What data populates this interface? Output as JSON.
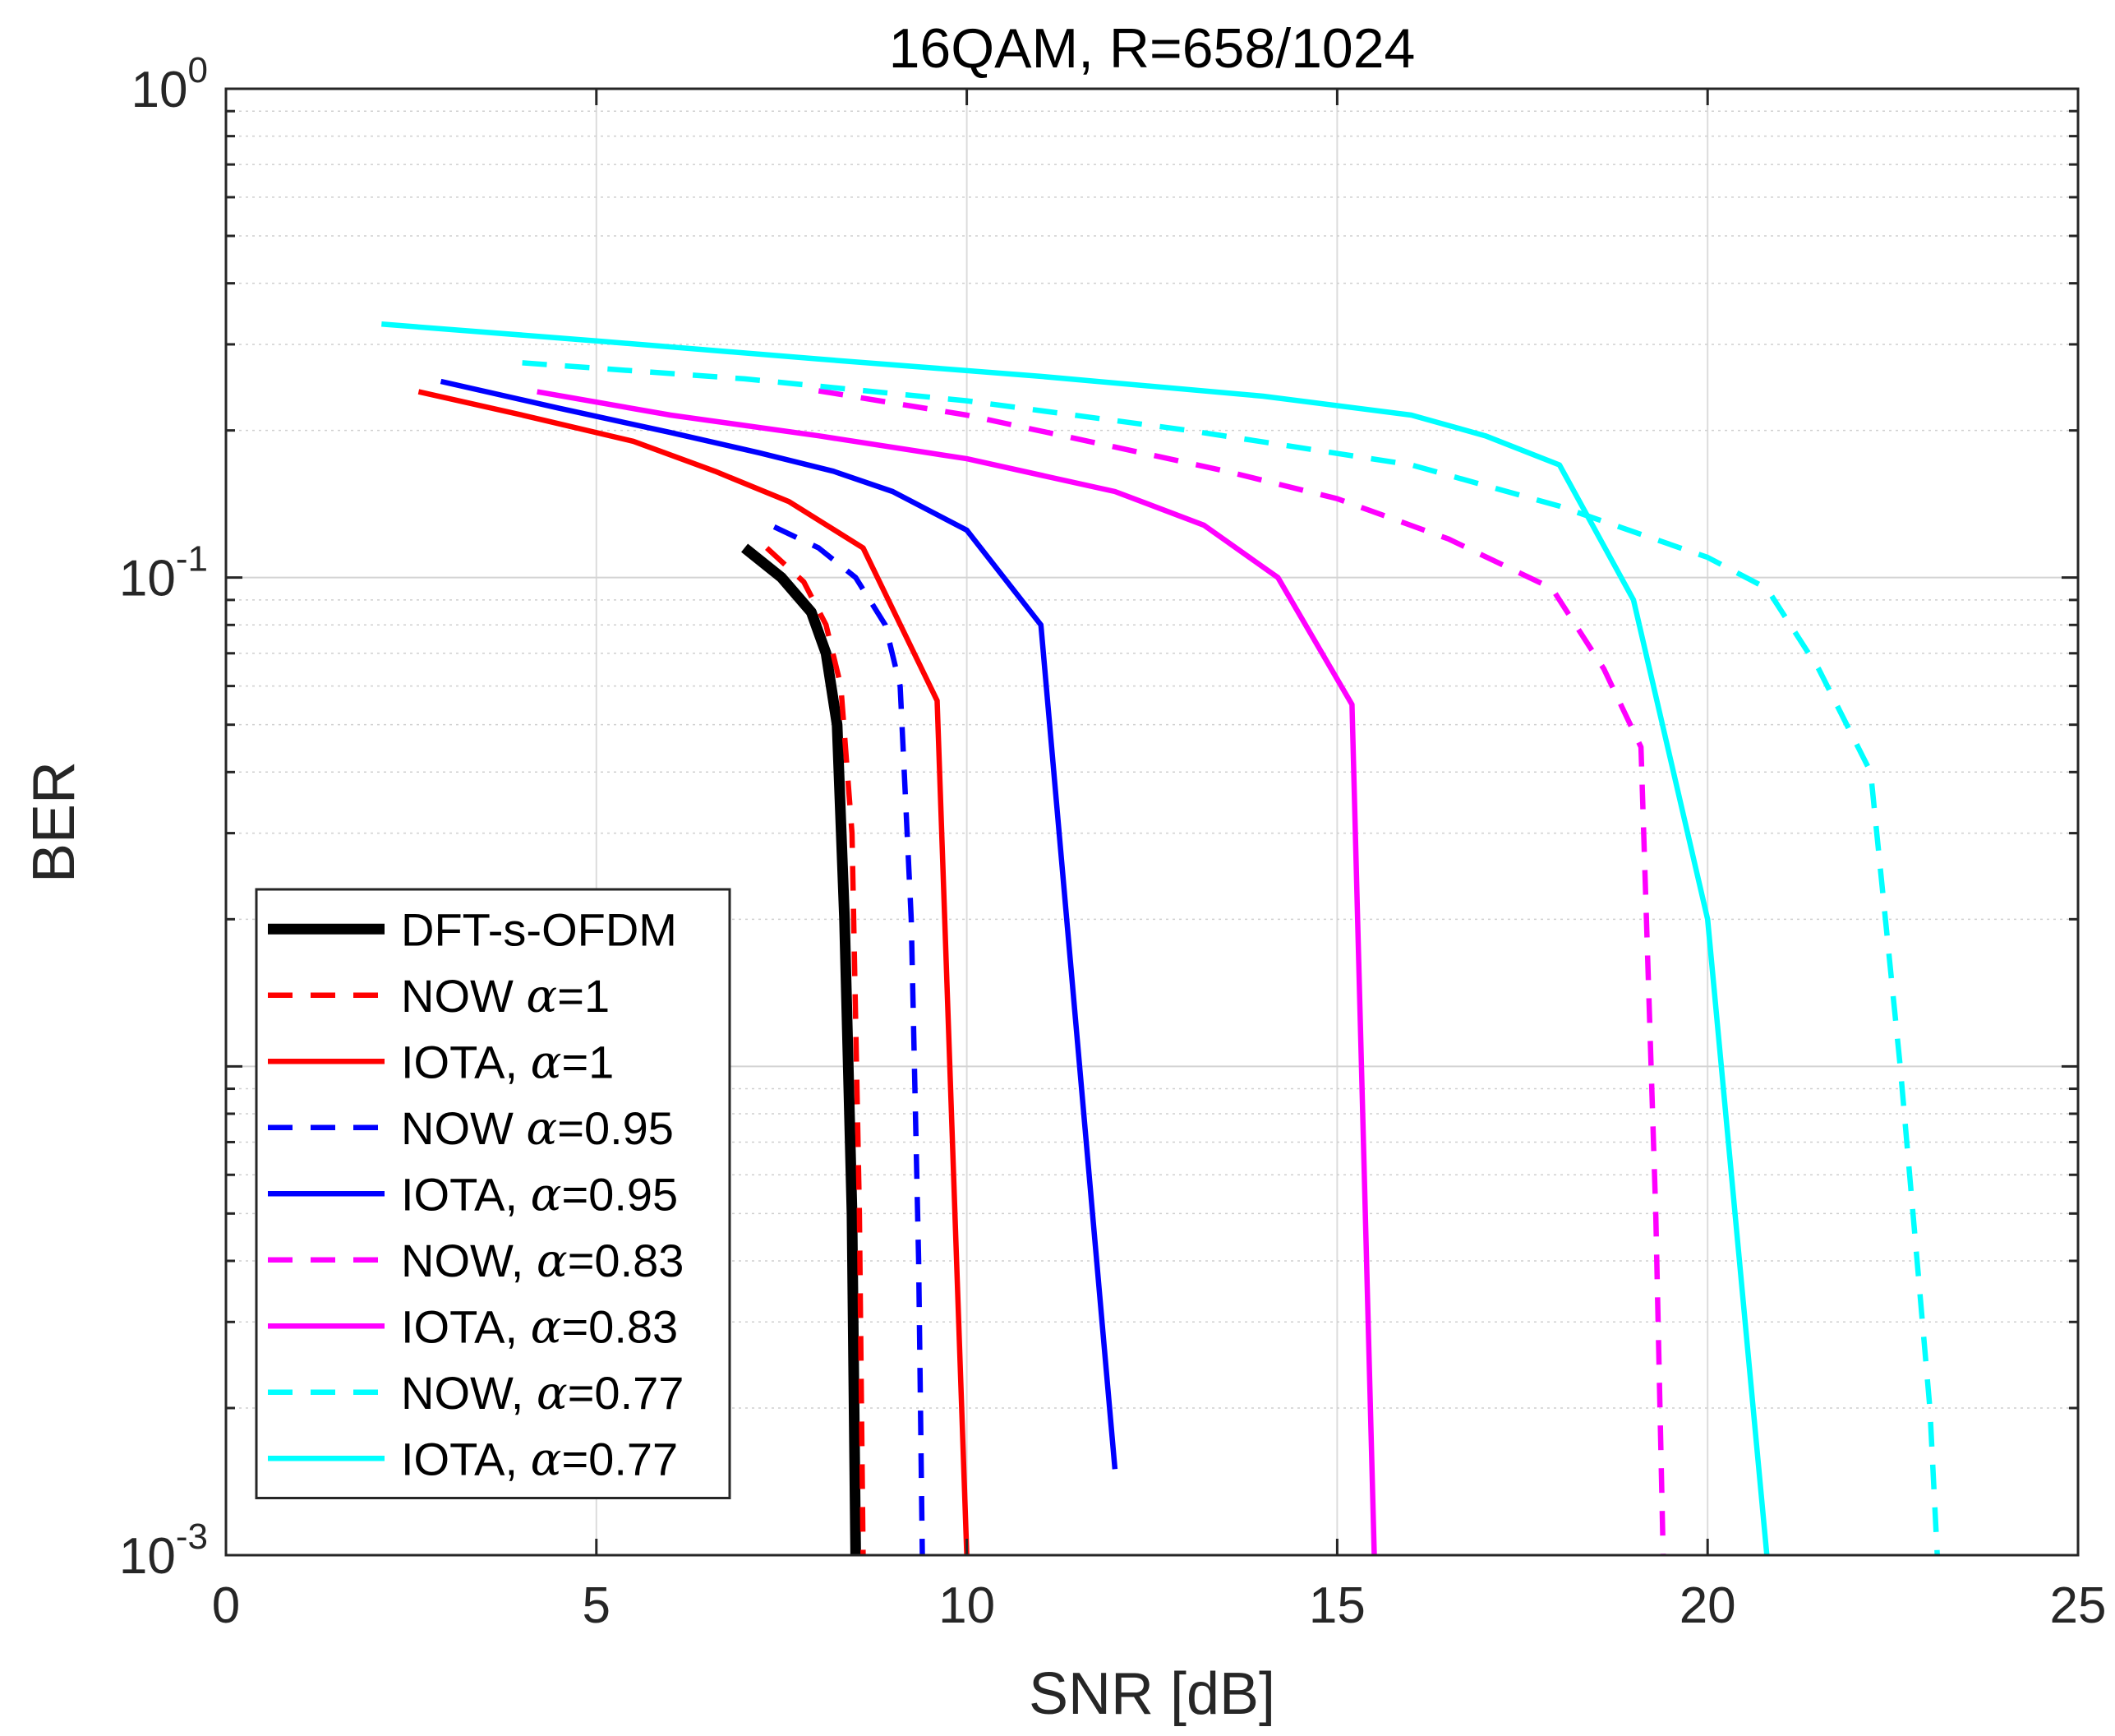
{
  "chart_data": {
    "type": "line",
    "title": "16QAM, R=658/1024",
    "xlabel": "SNR [dB]",
    "ylabel": "BER",
    "xlim": [
      0,
      25
    ],
    "ylim": [
      0.001,
      1
    ],
    "yscale": "log",
    "grid": true,
    "legend_position": "bottom-left",
    "x_ticks": [
      0,
      5,
      10,
      15,
      20,
      25
    ],
    "x_tick_labels": [
      "0",
      "5",
      "10",
      "15",
      "20",
      "25"
    ],
    "y_ticks": [
      {
        "value": 1,
        "base": "10",
        "exp": "0"
      },
      {
        "value": 0.1,
        "base": "10",
        "exp": "-1"
      },
      {
        "value": 0.001,
        "base": "10",
        "exp": "-3"
      }
    ],
    "series": [
      {
        "name": "DFT-s-OFDM",
        "label": "DFT-s-OFDM",
        "color": "#000000",
        "dash": "solid",
        "width": "thick",
        "x": [
          7.0,
          7.5,
          7.9,
          8.1,
          8.25,
          8.35,
          8.45,
          8.5
        ],
        "y": [
          0.115,
          0.1,
          0.085,
          0.07,
          0.05,
          0.02,
          0.005,
          0.001
        ]
      },
      {
        "name": "NOW alpha=1",
        "label_prefix": "NOW ",
        "label_suffix": "=1",
        "color": "#ff0000",
        "dash": "dashed",
        "width": "normal",
        "x": [
          7.3,
          7.8,
          8.1,
          8.3,
          8.45,
          8.55,
          8.6
        ],
        "y": [
          0.115,
          0.098,
          0.08,
          0.06,
          0.03,
          0.005,
          0.001
        ]
      },
      {
        "name": "IOTA alpha=1",
        "label_prefix": "IOTA, ",
        "label_suffix": "=1",
        "color": "#ff0000",
        "dash": "solid",
        "width": "normal",
        "x": [
          2.6,
          4.0,
          5.5,
          6.6,
          7.6,
          8.6,
          9.6,
          10.0
        ],
        "y": [
          0.24,
          0.215,
          0.19,
          0.165,
          0.143,
          0.115,
          0.056,
          0.001
        ]
      },
      {
        "name": "NOW alpha=0.95",
        "label_prefix": "NOW ",
        "label_suffix": "=0.95",
        "color": "#0000ff",
        "dash": "dashed",
        "width": "normal",
        "x": [
          7.4,
          8.0,
          8.5,
          8.9,
          9.1,
          9.25,
          9.35,
          9.4
        ],
        "y": [
          0.127,
          0.115,
          0.1,
          0.08,
          0.06,
          0.02,
          0.004,
          0.001
        ]
      },
      {
        "name": "IOTA alpha=0.95",
        "label_prefix": "IOTA, ",
        "label_suffix": "=0.95",
        "color": "#0000ff",
        "dash": "solid",
        "width": "normal",
        "x": [
          2.9,
          4.5,
          6.0,
          7.2,
          8.2,
          9.0,
          10.0,
          11.0,
          12.0
        ],
        "y": [
          0.252,
          0.222,
          0.198,
          0.18,
          0.165,
          0.15,
          0.125,
          0.08,
          0.0015
        ]
      },
      {
        "name": "NOW alpha=0.83",
        "label_prefix": "NOW, ",
        "label_suffix": "=0.83",
        "color": "#ff00ff",
        "dash": "dashed",
        "width": "normal",
        "x": [
          8.0,
          10.0,
          12.0,
          13.5,
          15.0,
          16.5,
          17.3,
          17.9,
          18.6,
          19.1,
          19.3,
          19.4
        ],
        "y": [
          0.241,
          0.215,
          0.185,
          0.165,
          0.145,
          0.12,
          0.105,
          0.095,
          0.065,
          0.045,
          0.005,
          0.001
        ]
      },
      {
        "name": "IOTA alpha=0.83",
        "label_prefix": "IOTA, ",
        "label_suffix": "=0.83",
        "color": "#ff00ff",
        "dash": "solid",
        "width": "normal",
        "x": [
          4.2,
          6.0,
          8.0,
          10.0,
          12.0,
          13.2,
          14.2,
          15.2,
          15.5
        ],
        "y": [
          0.24,
          0.215,
          0.195,
          0.175,
          0.15,
          0.128,
          0.1,
          0.055,
          0.001
        ]
      },
      {
        "name": "NOW alpha=0.77",
        "label_prefix": "NOW, ",
        "label_suffix": "=0.77",
        "color": "#00ffff",
        "dash": "dashed",
        "width": "normal",
        "x": [
          4.0,
          7.0,
          10.0,
          13.0,
          16.0,
          18.0,
          20.0,
          20.8,
          21.5,
          22.2,
          22.6,
          23.0,
          23.1
        ],
        "y": [
          0.275,
          0.255,
          0.23,
          0.2,
          0.17,
          0.14,
          0.11,
          0.095,
          0.065,
          0.04,
          0.01,
          0.002,
          0.001
        ]
      },
      {
        "name": "IOTA alpha=0.77",
        "label_prefix": "IOTA, ",
        "label_suffix": "=0.77",
        "color": "#00ffff",
        "dash": "solid",
        "width": "normal",
        "x": [
          2.1,
          5.0,
          8.0,
          11.0,
          14.0,
          16.0,
          17.0,
          18.0,
          19.0,
          20.0,
          20.8
        ],
        "y": [
          0.33,
          0.305,
          0.28,
          0.258,
          0.235,
          0.215,
          0.195,
          0.17,
          0.09,
          0.02,
          0.001
        ]
      }
    ],
    "legend_alpha_symbol": "α"
  }
}
